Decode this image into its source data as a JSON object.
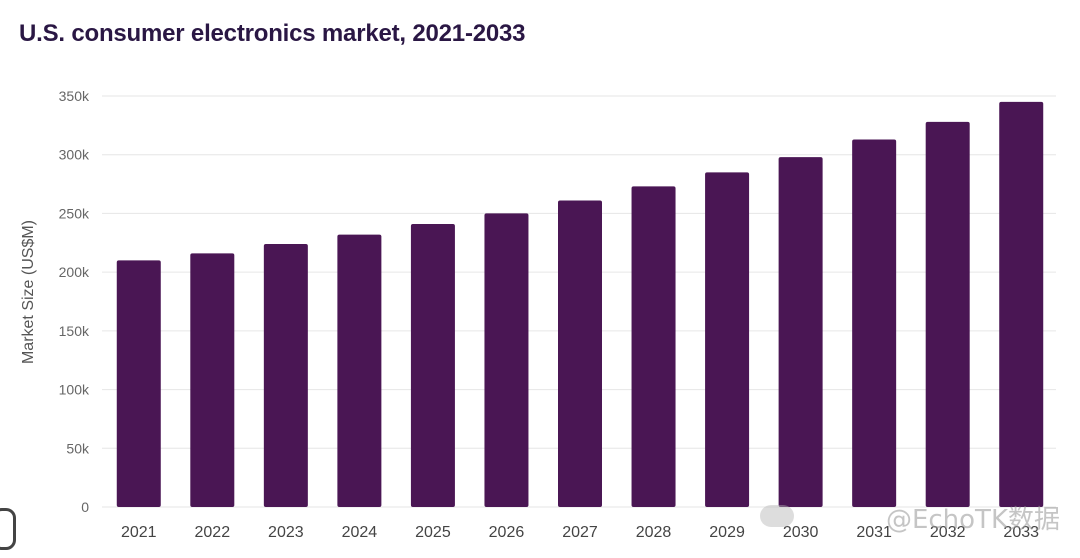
{
  "chart_data": {
    "type": "bar",
    "title": "U.S. consumer electronics market, 2021-2033",
    "ylabel": "Market Size (US$M)",
    "xlabel": "",
    "categories": [
      "2021",
      "2022",
      "2023",
      "2024",
      "2025",
      "2026",
      "2027",
      "2028",
      "2029",
      "2030",
      "2031",
      "2032",
      "2033"
    ],
    "values": [
      210000,
      216000,
      224000,
      232000,
      241000,
      250000,
      261000,
      273000,
      285000,
      298000,
      313000,
      328000,
      345000
    ],
    "ylim": [
      0,
      350000
    ],
    "yticks": [
      0,
      50000,
      100000,
      150000,
      200000,
      250000,
      300000,
      350000
    ],
    "ytick_labels": [
      "0",
      "50k",
      "100k",
      "150k",
      "200k",
      "250k",
      "300k",
      "350k"
    ],
    "grid": true,
    "bar_color": "#4a1654"
  },
  "watermark": "@EchoTK数据"
}
